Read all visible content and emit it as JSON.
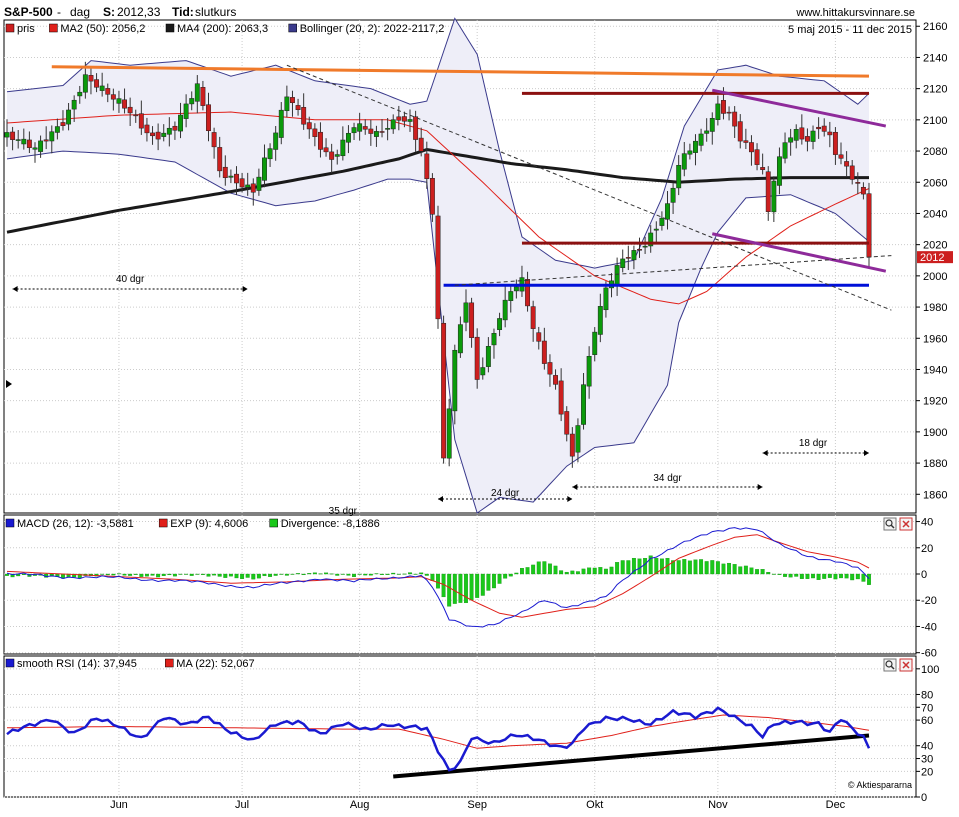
{
  "header": {
    "symbol": "S&P-500",
    "sep1": " - ",
    "period": "dag",
    "close_label": "S:",
    "close_value": "2012,33",
    "time_label": "Tid:",
    "time_value": "slutkurs",
    "site": "www.hittakursvinnare.se",
    "date_range": "5 maj 2015 - 11 dec 2015",
    "credit": "© Aktiespararna"
  },
  "colors": {
    "candle_up": "#0b9a0b",
    "candle_down": "#cc1f1f",
    "ma50": "#e0201a",
    "ma200": "#1a1a1a",
    "bollinger": "#3a3a8c",
    "bollinger_fill": "#eeeef8",
    "orange_line": "#f07a2a",
    "maroon_line": "#8b1010",
    "purple_line": "#8e2a9a",
    "blue_line": "#0010d8",
    "macd": "#1a1ad0",
    "signal": "#e0201a",
    "histogram": "#1ac81a",
    "rsi": "#1a1ad0",
    "rsi_ma": "#e0201a",
    "grid": "#cccccc",
    "price_tag": "#cc1f1f"
  },
  "chart_data": [
    {
      "type": "candlestick",
      "legend": [
        {
          "label": "pris",
          "color": "#cc1f1f"
        },
        {
          "label": "MA2 (50): 2056,2",
          "color": "#e0201a"
        },
        {
          "label": "MA4 (200): 2063,3",
          "color": "#1a1a1a"
        },
        {
          "label": "Bollinger (20, 2): 2022-2117,2",
          "color": "#3a3a8c"
        }
      ],
      "y_ticks": [
        2160,
        2140,
        2120,
        2100,
        2080,
        2060,
        2040,
        2020,
        2000,
        1980,
        1960,
        1940,
        1920,
        1900,
        1880,
        1860
      ],
      "ylim": [
        1848,
        2164
      ],
      "x_month_labels": [
        {
          "label": "Jun",
          "index": 20
        },
        {
          "label": "Jul",
          "index": 42
        },
        {
          "label": "Aug",
          "index": 63
        },
        {
          "label": "Sep",
          "index": 84
        },
        {
          "label": "Okt",
          "index": 105
        },
        {
          "label": "Nov",
          "index": 127
        },
        {
          "label": "Dec",
          "index": 148
        }
      ],
      "n_bars": 155,
      "close_anchors": [
        [
          0,
          2090
        ],
        [
          5,
          2080
        ],
        [
          10,
          2100
        ],
        [
          14,
          2128
        ],
        [
          18,
          2115
        ],
        [
          22,
          2105
        ],
        [
          26,
          2090
        ],
        [
          30,
          2095
        ],
        [
          34,
          2120
        ],
        [
          38,
          2068
        ],
        [
          42,
          2060
        ],
        [
          44,
          2055
        ],
        [
          48,
          2090
        ],
        [
          50,
          2115
        ],
        [
          54,
          2095
        ],
        [
          58,
          2075
        ],
        [
          62,
          2095
        ],
        [
          66,
          2090
        ],
        [
          70,
          2103
        ],
        [
          72,
          2100
        ],
        [
          74,
          2080
        ],
        [
          76,
          2040
        ],
        [
          77,
          1970
        ],
        [
          78,
          1880
        ],
        [
          80,
          1950
        ],
        [
          82,
          1985
        ],
        [
          84,
          1935
        ],
        [
          86,
          1955
        ],
        [
          88,
          1975
        ],
        [
          90,
          1990
        ],
        [
          92,
          1995
        ],
        [
          94,
          1965
        ],
        [
          96,
          1945
        ],
        [
          98,
          1930
        ],
        [
          100,
          1900
        ],
        [
          101,
          1885
        ],
        [
          103,
          1930
        ],
        [
          105,
          1965
        ],
        [
          107,
          1990
        ],
        [
          110,
          2010
        ],
        [
          112,
          2015
        ],
        [
          114,
          2022
        ],
        [
          116,
          2033
        ],
        [
          118,
          2045
        ],
        [
          120,
          2070
        ],
        [
          122,
          2080
        ],
        [
          124,
          2088
        ],
        [
          126,
          2100
        ],
        [
          127,
          2110
        ],
        [
          129,
          2105
        ],
        [
          131,
          2090
        ],
        [
          133,
          2080
        ],
        [
          135,
          2065
        ],
        [
          136,
          2040
        ],
        [
          137,
          2060
        ],
        [
          139,
          2085
        ],
        [
          141,
          2092
        ],
        [
          143,
          2088
        ],
        [
          145,
          2098
        ],
        [
          147,
          2090
        ],
        [
          148,
          2080
        ],
        [
          150,
          2068
        ],
        [
          152,
          2056
        ],
        [
          153,
          2050
        ],
        [
          154,
          2012
        ]
      ],
      "ma50_anchors": [
        [
          0,
          2098
        ],
        [
          20,
          2103
        ],
        [
          40,
          2105
        ],
        [
          55,
          2100
        ],
        [
          68,
          2100
        ],
        [
          75,
          2093
        ],
        [
          85,
          2060
        ],
        [
          95,
          2025
        ],
        [
          105,
          2000
        ],
        [
          115,
          1985
        ],
        [
          120,
          1982
        ],
        [
          125,
          1990
        ],
        [
          132,
          2012
        ],
        [
          140,
          2032
        ],
        [
          148,
          2046
        ],
        [
          154,
          2056
        ]
      ],
      "ma200_anchors": [
        [
          0,
          2028
        ],
        [
          20,
          2042
        ],
        [
          40,
          2054
        ],
        [
          60,
          2067
        ],
        [
          70,
          2075
        ],
        [
          75,
          2081
        ],
        [
          80,
          2078
        ],
        [
          90,
          2072
        ],
        [
          100,
          2068
        ],
        [
          110,
          2063
        ],
        [
          120,
          2060
        ],
        [
          130,
          2062
        ],
        [
          140,
          2063
        ],
        [
          150,
          2063
        ],
        [
          154,
          2063
        ]
      ],
      "bollinger_upper_anchors": [
        [
          0,
          2118
        ],
        [
          10,
          2122
        ],
        [
          15,
          2138
        ],
        [
          22,
          2135
        ],
        [
          32,
          2138
        ],
        [
          40,
          2128
        ],
        [
          48,
          2135
        ],
        [
          55,
          2125
        ],
        [
          65,
          2120
        ],
        [
          72,
          2110
        ],
        [
          75,
          2112
        ],
        [
          80,
          2165
        ],
        [
          84,
          2142
        ],
        [
          88,
          2080
        ],
        [
          92,
          2025
        ],
        [
          98,
          2010
        ],
        [
          105,
          2005
        ],
        [
          112,
          2010
        ],
        [
          117,
          2050
        ],
        [
          121,
          2096
        ],
        [
          127,
          2132
        ],
        [
          132,
          2135
        ],
        [
          138,
          2128
        ],
        [
          146,
          2125
        ],
        [
          152,
          2110
        ],
        [
          154,
          2117
        ]
      ],
      "bollinger_lower_anchors": [
        [
          0,
          2075
        ],
        [
          10,
          2080
        ],
        [
          20,
          2078
        ],
        [
          30,
          2073
        ],
        [
          40,
          2053
        ],
        [
          48,
          2045
        ],
        [
          55,
          2048
        ],
        [
          62,
          2055
        ],
        [
          68,
          2062
        ],
        [
          72,
          2062
        ],
        [
          75,
          2060
        ],
        [
          78,
          1960
        ],
        [
          80,
          1895
        ],
        [
          84,
          1848
        ],
        [
          88,
          1858
        ],
        [
          94,
          1855
        ],
        [
          100,
          1878
        ],
        [
          105,
          1890
        ],
        [
          112,
          1893
        ],
        [
          118,
          1930
        ],
        [
          120,
          1970
        ],
        [
          124,
          2005
        ],
        [
          127,
          2028
        ],
        [
          132,
          2050
        ],
        [
          140,
          2052
        ],
        [
          148,
          2040
        ],
        [
          154,
          2022
        ]
      ],
      "annotations": [
        {
          "text": "40 dgr"
        },
        {
          "text": "35 dgr"
        },
        {
          "text": "24 dgr"
        },
        {
          "text": "34 dgr"
        },
        {
          "text": "18 dgr"
        }
      ],
      "last_price_tag": "2012"
    },
    {
      "type": "line",
      "legend": [
        {
          "label": "MACD (26, 12): -3,5881",
          "color": "#1a1ad0"
        },
        {
          "label": "EXP (9): 4,6006",
          "color": "#e0201a"
        },
        {
          "label": "Divergence: -8,1886",
          "color": "#1ac81a"
        }
      ],
      "y_ticks": [
        40,
        20,
        0,
        -20,
        -40,
        -60
      ],
      "ylim": [
        -61,
        45
      ],
      "macd_anchors": [
        [
          0,
          0
        ],
        [
          10,
          -2
        ],
        [
          20,
          -3
        ],
        [
          30,
          -5
        ],
        [
          38,
          -8
        ],
        [
          44,
          -10
        ],
        [
          50,
          -7
        ],
        [
          56,
          -3
        ],
        [
          62,
          -6
        ],
        [
          70,
          -2
        ],
        [
          74,
          -1
        ],
        [
          76,
          -10
        ],
        [
          79,
          -35
        ],
        [
          83,
          -40
        ],
        [
          87,
          -38
        ],
        [
          92,
          -30
        ],
        [
          96,
          -20
        ],
        [
          100,
          -25
        ],
        [
          103,
          -22
        ],
        [
          107,
          -18
        ],
        [
          110,
          -5
        ],
        [
          115,
          12
        ],
        [
          120,
          22
        ],
        [
          126,
          32
        ],
        [
          130,
          36
        ],
        [
          134,
          34
        ],
        [
          138,
          22
        ],
        [
          143,
          14
        ],
        [
          148,
          10
        ],
        [
          152,
          4
        ],
        [
          154,
          -3.6
        ]
      ],
      "signal_anchors": [
        [
          0,
          2
        ],
        [
          10,
          0
        ],
        [
          20,
          -2
        ],
        [
          30,
          -4
        ],
        [
          40,
          -7
        ],
        [
          50,
          -6
        ],
        [
          60,
          -4
        ],
        [
          70,
          -3
        ],
        [
          74,
          -2
        ],
        [
          78,
          -8
        ],
        [
          83,
          -20
        ],
        [
          88,
          -30
        ],
        [
          92,
          -33
        ],
        [
          96,
          -30
        ],
        [
          100,
          -27
        ],
        [
          105,
          -25
        ],
        [
          110,
          -15
        ],
        [
          115,
          -2
        ],
        [
          120,
          12
        ],
        [
          126,
          22
        ],
        [
          130,
          28
        ],
        [
          134,
          30
        ],
        [
          138,
          24
        ],
        [
          143,
          17
        ],
        [
          148,
          13
        ],
        [
          152,
          9
        ],
        [
          154,
          4.6
        ]
      ],
      "histogram": "macd minus signal"
    },
    {
      "type": "line",
      "legend": [
        {
          "label": "smooth RSI (14): 37,945",
          "color": "#1a1ad0"
        },
        {
          "label": "MA (22): 52,067",
          "color": "#e0201a"
        }
      ],
      "y_ticks": [
        100,
        80,
        70,
        60,
        40,
        30,
        20,
        0
      ],
      "ylim": [
        0,
        110
      ],
      "rsi_anchors": [
        [
          0,
          48
        ],
        [
          4,
          55
        ],
        [
          8,
          62
        ],
        [
          12,
          50
        ],
        [
          16,
          60
        ],
        [
          20,
          55
        ],
        [
          24,
          47
        ],
        [
          28,
          62
        ],
        [
          32,
          55
        ],
        [
          36,
          63
        ],
        [
          40,
          52
        ],
        [
          44,
          43
        ],
        [
          48,
          56
        ],
        [
          52,
          60
        ],
        [
          56,
          50
        ],
        [
          60,
          56
        ],
        [
          64,
          52
        ],
        [
          68,
          58
        ],
        [
          72,
          55
        ],
        [
          75,
          52
        ],
        [
          77,
          35
        ],
        [
          79,
          20
        ],
        [
          81,
          28
        ],
        [
          83,
          48
        ],
        [
          87,
          42
        ],
        [
          91,
          47
        ],
        [
          95,
          45
        ],
        [
          99,
          40
        ],
        [
          101,
          42
        ],
        [
          103,
          53
        ],
        [
          107,
          60
        ],
        [
          111,
          62
        ],
        [
          115,
          58
        ],
        [
          119,
          65
        ],
        [
          123,
          62
        ],
        [
          127,
          70
        ],
        [
          129,
          66
        ],
        [
          131,
          60
        ],
        [
          133,
          54
        ],
        [
          135,
          46
        ],
        [
          137,
          56
        ],
        [
          141,
          60
        ],
        [
          145,
          58
        ],
        [
          147,
          50
        ],
        [
          149,
          60
        ],
        [
          151,
          52
        ],
        [
          153,
          46
        ],
        [
          154,
          38
        ]
      ],
      "rsi_ma_anchors": [
        [
          0,
          54
        ],
        [
          20,
          55
        ],
        [
          40,
          54
        ],
        [
          60,
          53
        ],
        [
          70,
          53
        ],
        [
          78,
          45
        ],
        [
          84,
          38
        ],
        [
          90,
          40
        ],
        [
          100,
          42
        ],
        [
          108,
          48
        ],
        [
          115,
          55
        ],
        [
          122,
          60
        ],
        [
          128,
          64
        ],
        [
          136,
          62
        ],
        [
          144,
          58
        ],
        [
          150,
          55
        ],
        [
          154,
          52
        ]
      ],
      "trendline": "support"
    }
  ]
}
